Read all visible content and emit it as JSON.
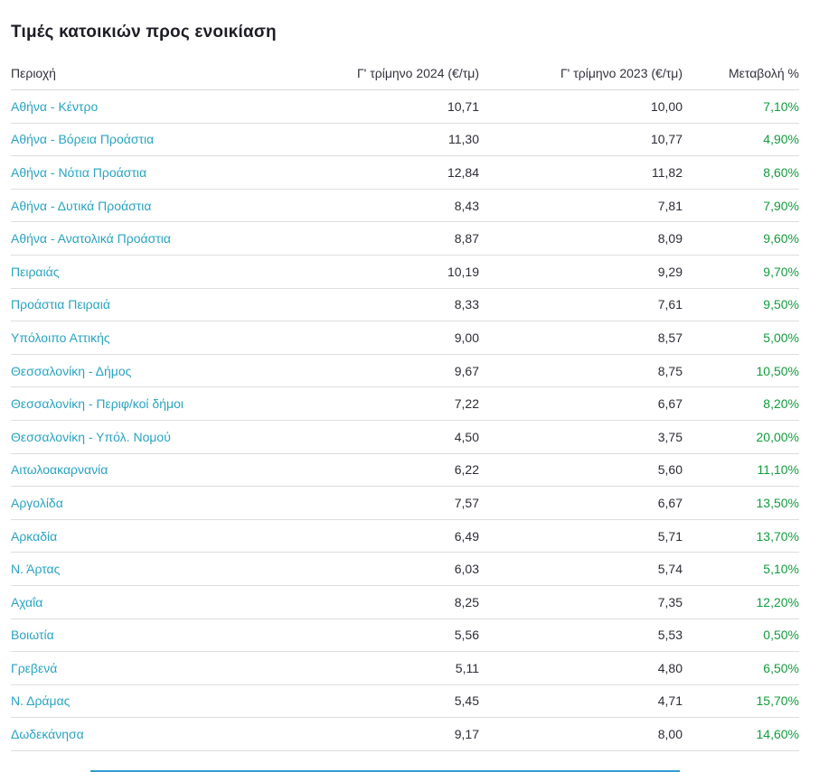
{
  "page": {
    "title": "Τιμές κατοικιών προς ενοικίαση"
  },
  "table": {
    "headers": {
      "region": "Περιοχή",
      "q2024": "Γ' τρίμηνο 2024 (€/τμ)",
      "q2023": "Γ' τρίμηνο 2023 (€/τμ)",
      "change": "Μεταβολή %"
    },
    "rows": [
      {
        "region": "Αθήνα - Κέντρο",
        "q2024": "10,71",
        "q2023": "10,00",
        "change": "7,10%"
      },
      {
        "region": "Αθήνα - Βόρεια Προάστια",
        "q2024": "11,30",
        "q2023": "10,77",
        "change": "4,90%"
      },
      {
        "region": "Αθήνα - Νότια Προάστια",
        "q2024": "12,84",
        "q2023": "11,82",
        "change": "8,60%"
      },
      {
        "region": "Αθήνα - Δυτικά Προάστια",
        "q2024": "8,43",
        "q2023": "7,81",
        "change": "7,90%"
      },
      {
        "region": "Αθήνα - Ανατολικά Προάστια",
        "q2024": "8,87",
        "q2023": "8,09",
        "change": "9,60%"
      },
      {
        "region": "Πειραιάς",
        "q2024": "10,19",
        "q2023": "9,29",
        "change": "9,70%"
      },
      {
        "region": "Προάστια Πειραιά",
        "q2024": "8,33",
        "q2023": "7,61",
        "change": "9,50%"
      },
      {
        "region": "Υπόλοιπο Αττικής",
        "q2024": "9,00",
        "q2023": "8,57",
        "change": "5,00%"
      },
      {
        "region": "Θεσσαλονίκη - Δήμος",
        "q2024": "9,67",
        "q2023": "8,75",
        "change": "10,50%"
      },
      {
        "region": "Θεσσαλονίκη - Περιφ/κοί δήμοι",
        "q2024": "7,22",
        "q2023": "6,67",
        "change": "8,20%"
      },
      {
        "region": "Θεσσαλονίκη - Υπόλ. Νομού",
        "q2024": "4,50",
        "q2023": "3,75",
        "change": "20,00%"
      },
      {
        "region": "Αιτωλοακαρνανία",
        "q2024": "6,22",
        "q2023": "5,60",
        "change": "11,10%"
      },
      {
        "region": "Αργολίδα",
        "q2024": "7,57",
        "q2023": "6,67",
        "change": "13,50%"
      },
      {
        "region": "Αρκαδία",
        "q2024": "6,49",
        "q2023": "5,71",
        "change": "13,70%"
      },
      {
        "region": "Ν. Άρτας",
        "q2024": "6,03",
        "q2023": "5,74",
        "change": "5,10%"
      },
      {
        "region": "Αχαΐα",
        "q2024": "8,25",
        "q2023": "7,35",
        "change": "12,20%"
      },
      {
        "region": "Βοιωτία",
        "q2024": "5,56",
        "q2023": "5,53",
        "change": "0,50%"
      },
      {
        "region": "Γρεβενά",
        "q2024": "5,11",
        "q2023": "4,80",
        "change": "6,50%"
      },
      {
        "region": "Ν. Δράμας",
        "q2024": "5,45",
        "q2023": "4,71",
        "change": "15,70%"
      },
      {
        "region": "Δωδεκάνησα",
        "q2024": "9,17",
        "q2023": "8,00",
        "change": "14,60%"
      }
    ]
  },
  "chart_data": {
    "type": "table",
    "title": "Τιμές κατοικιών προς ενοικίαση",
    "columns": [
      "Περιοχή",
      "Γ' τρίμηνο 2024 (€/τμ)",
      "Γ' τρίμηνο 2023 (€/τμ)",
      "Μεταβολή %"
    ],
    "rows": [
      [
        "Αθήνα - Κέντρο",
        10.71,
        10.0,
        7.1
      ],
      [
        "Αθήνα - Βόρεια Προάστια",
        11.3,
        10.77,
        4.9
      ],
      [
        "Αθήνα - Νότια Προάστια",
        12.84,
        11.82,
        8.6
      ],
      [
        "Αθήνα - Δυτικά Προάστια",
        8.43,
        7.81,
        7.9
      ],
      [
        "Αθήνα - Ανατολικά Προάστια",
        8.87,
        8.09,
        9.6
      ],
      [
        "Πειραιάς",
        10.19,
        9.29,
        9.7
      ],
      [
        "Προάστια Πειραιά",
        8.33,
        7.61,
        9.5
      ],
      [
        "Υπόλοιπο Αττικής",
        9.0,
        8.57,
        5.0
      ],
      [
        "Θεσσαλονίκη - Δήμος",
        9.67,
        8.75,
        10.5
      ],
      [
        "Θεσσαλονίκη - Περιφ/κοί δήμοι",
        7.22,
        6.67,
        8.2
      ],
      [
        "Θεσσαλονίκη - Υπόλ. Νομού",
        4.5,
        3.75,
        20.0
      ],
      [
        "Αιτωλοακαρνανία",
        6.22,
        5.6,
        11.1
      ],
      [
        "Αργολίδα",
        7.57,
        6.67,
        13.5
      ],
      [
        "Αρκαδία",
        6.49,
        5.71,
        13.7
      ],
      [
        "Ν. Άρτας",
        6.03,
        5.74,
        5.1
      ],
      [
        "Αχαΐα",
        8.25,
        7.35,
        12.2
      ],
      [
        "Βοιωτία",
        5.56,
        5.53,
        0.5
      ],
      [
        "Γρεβενά",
        5.11,
        4.8,
        6.5
      ],
      [
        "Ν. Δράμας",
        5.45,
        4.71,
        15.7
      ],
      [
        "Δωδεκάνησα",
        9.17,
        8.0,
        14.6
      ]
    ]
  },
  "colors": {
    "region_link": "#29a4c2",
    "positive_change": "#129c3d",
    "title_text": "#1d1d27",
    "number_text": "#2c2c36",
    "divider": "#dedede",
    "bottom_accent": "#2f9fd0"
  }
}
